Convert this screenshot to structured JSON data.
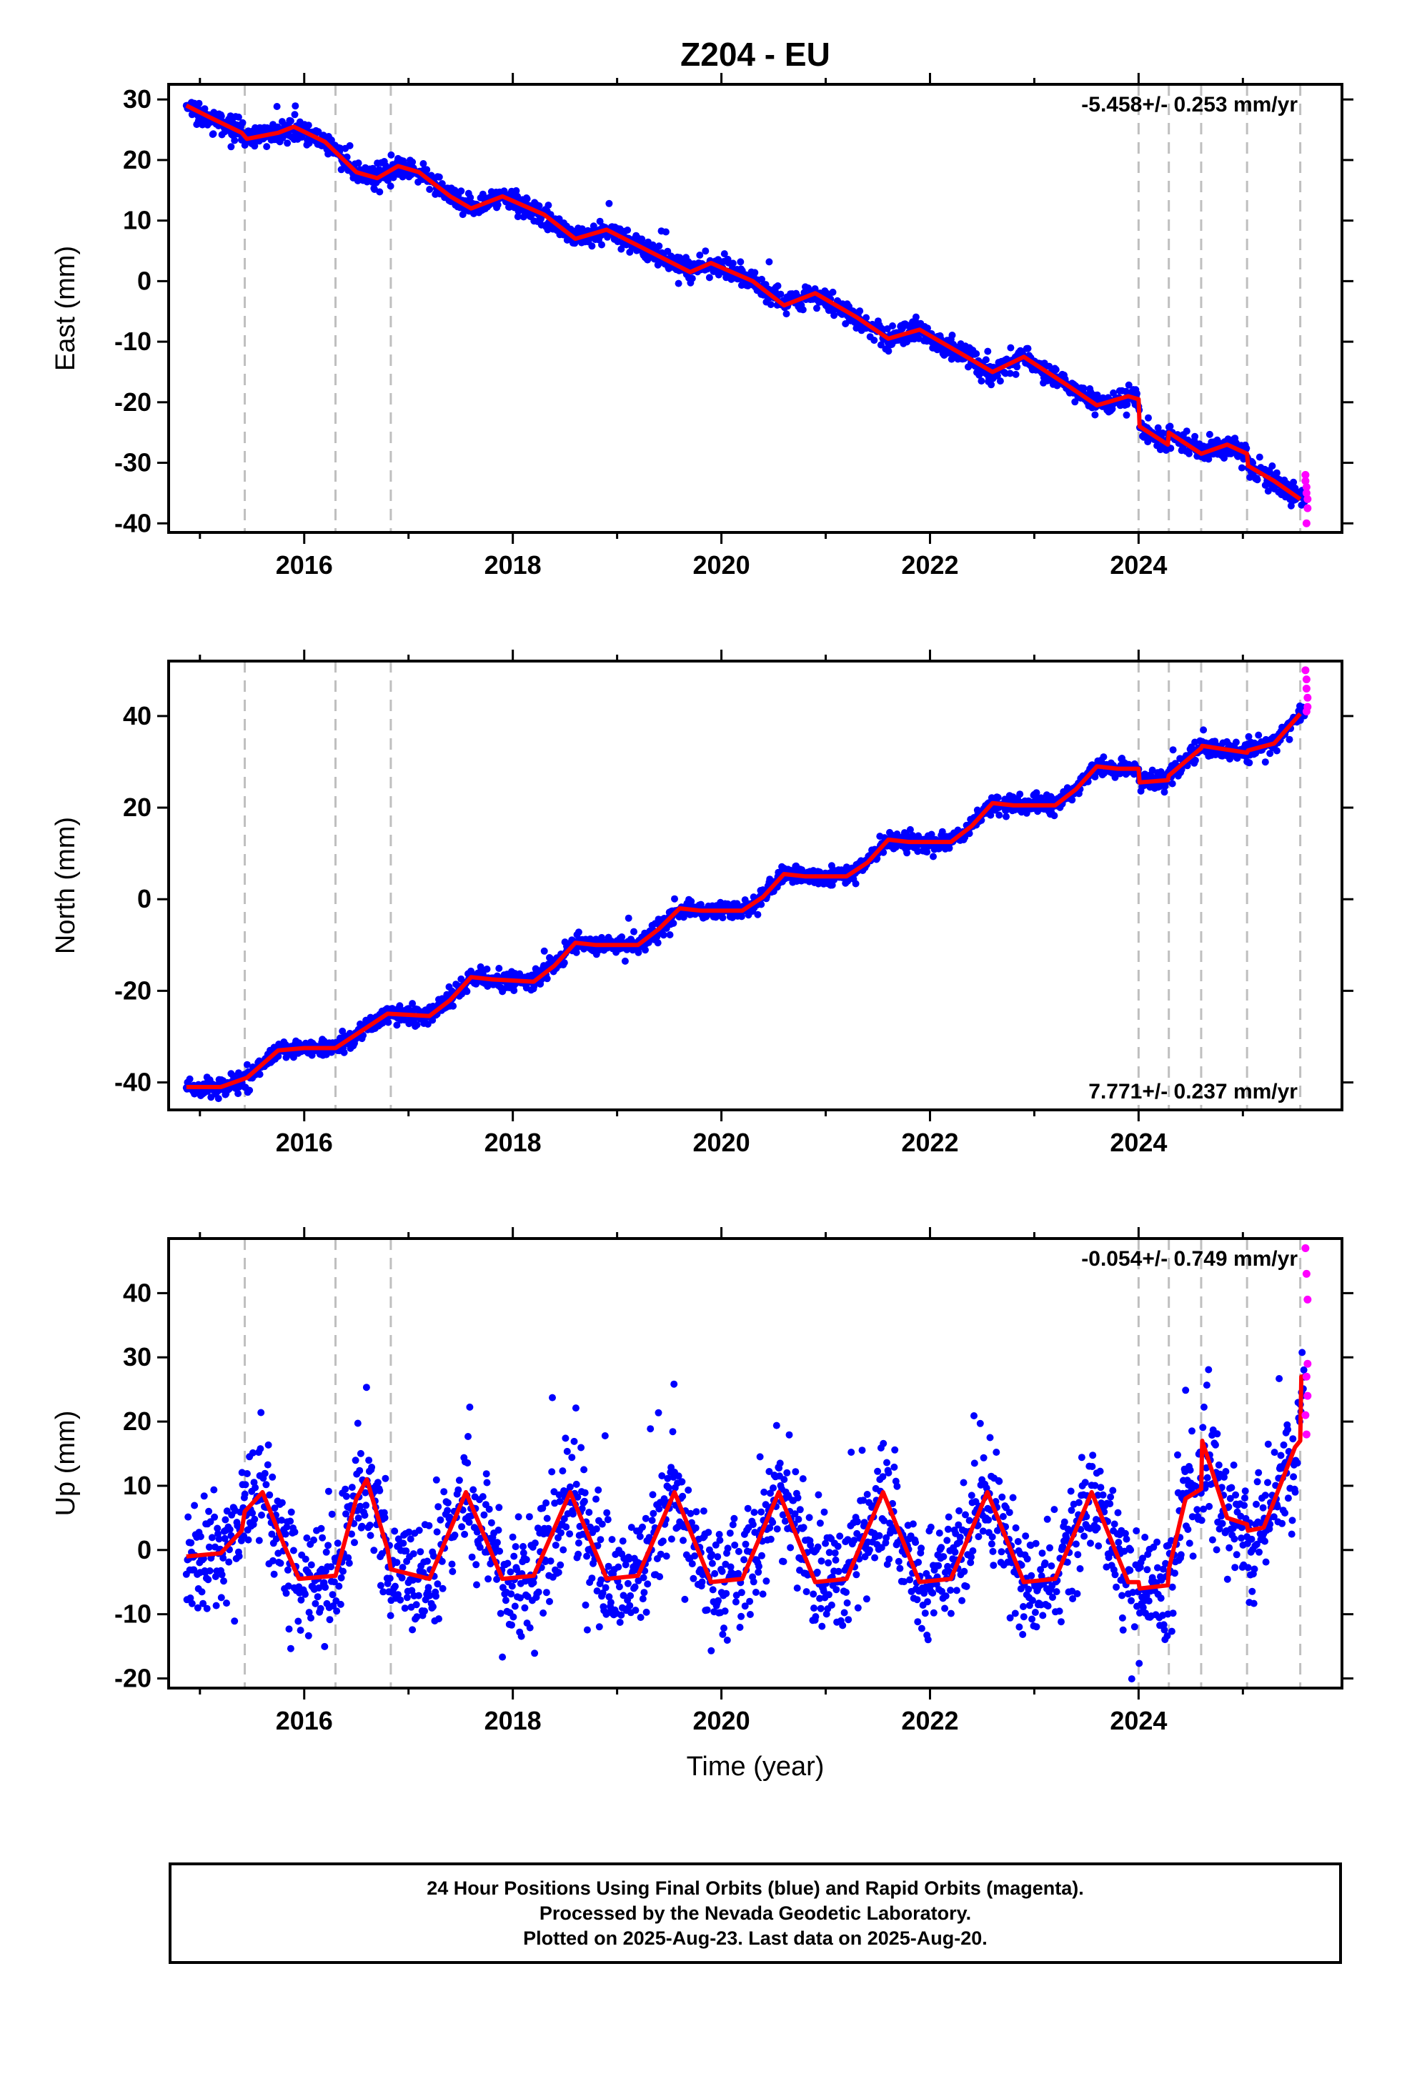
{
  "title": "Z204 - EU",
  "xlabel": "Time (year)",
  "caption": {
    "line1": "24 Hour Positions Using Final Orbits (blue) and Rapid Orbits (magenta).",
    "line2": "Processed by the Nevada Geodetic Laboratory.",
    "line3": "Plotted on 2025-Aug-23. Last data on 2025-Aug-20."
  },
  "colors": {
    "final": "#0000ff",
    "rapid": "#ff00ff",
    "model": "#ff0000",
    "events": "#bfbfbf"
  },
  "chart_data": [
    {
      "type": "scatter",
      "panel": "east",
      "ylabel": "East (mm)",
      "rate_text": "-5.458+/- 0.253 mm/yr",
      "rate_position": "top-right",
      "xlim": [
        2014.7,
        2025.95
      ],
      "ylim": [
        -41.5,
        32.5
      ],
      "xticks": [
        2016,
        2018,
        2020,
        2022,
        2024
      ],
      "xtick_labels": [
        "2016",
        "2018",
        "2020",
        "2022",
        "2024"
      ],
      "yticks": [
        30,
        20,
        10,
        0,
        -10,
        -20,
        -30,
        -40
      ],
      "ytick_labels": [
        "30",
        "20",
        "10",
        "0",
        "-10",
        "-20",
        "-30",
        "-40"
      ],
      "event_lines": [
        2015.43,
        2016.3,
        2016.83,
        2024.0,
        2024.29,
        2024.6,
        2025.04,
        2025.55
      ],
      "model": {
        "x": [
          2014.87,
          2015.1,
          2015.4,
          2015.45,
          2015.75,
          2015.9,
          2016.2,
          2016.5,
          2016.7,
          2016.9,
          2017.1,
          2017.4,
          2017.6,
          2017.9,
          2018.3,
          2018.6,
          2018.9,
          2019.3,
          2019.7,
          2019.9,
          2020.3,
          2020.6,
          2020.9,
          2021.3,
          2021.6,
          2021.9,
          2022.3,
          2022.6,
          2022.9,
          2023.3,
          2023.6,
          2023.9,
          2024.0,
          2024.01,
          2024.28,
          2024.29,
          2024.6,
          2024.85,
          2025.04,
          2025.05,
          2025.3,
          2025.55
        ],
        "y": [
          29,
          27,
          24.5,
          23.5,
          24.5,
          25.5,
          23,
          18,
          17,
          19,
          18,
          14,
          12,
          14,
          11,
          7,
          8.5,
          5,
          1.5,
          3,
          0,
          -4,
          -2,
          -6,
          -9.5,
          -8,
          -12,
          -15,
          -12.5,
          -17,
          -20.5,
          -19,
          -19.5,
          -24,
          -27,
          -25,
          -28.5,
          -27,
          -28.5,
          -30.5,
          -33,
          -36
        ]
      },
      "final_points": {
        "x_start": 2014.87,
        "x_end": 2025.6,
        "step": 0.0055,
        "scatter_mm": 0.9,
        "outlier_mm": 3.5
      },
      "rapid_points": {
        "x": [
          2025.6,
          2025.6,
          2025.61,
          2025.61,
          2025.62,
          2025.62,
          2025.61
        ],
        "y": [
          -32,
          -33,
          -34,
          -35,
          -36,
          -37.5,
          -40
        ]
      }
    },
    {
      "type": "scatter",
      "panel": "north",
      "ylabel": "North (mm)",
      "rate_text": "7.771+/- 0.237 mm/yr",
      "rate_position": "bottom-right",
      "xlim": [
        2014.7,
        2025.95
      ],
      "ylim": [
        -46,
        52
      ],
      "xticks": [
        2016,
        2018,
        2020,
        2022,
        2024
      ],
      "xtick_labels": [
        "2016",
        "2018",
        "2020",
        "2022",
        "2024"
      ],
      "yticks": [
        40,
        20,
        0,
        -20,
        -40
      ],
      "ytick_labels": [
        "40",
        "20",
        "0",
        "-20",
        "-40"
      ],
      "event_lines": [
        2015.43,
        2016.3,
        2016.83,
        2024.0,
        2024.29,
        2024.6,
        2025.04,
        2025.55
      ],
      "model": {
        "x": [
          2014.87,
          2015.2,
          2015.45,
          2015.75,
          2016.0,
          2016.3,
          2016.6,
          2016.8,
          2017.2,
          2017.4,
          2017.6,
          2017.8,
          2018.2,
          2018.4,
          2018.6,
          2018.8,
          2019.2,
          2019.4,
          2019.6,
          2019.8,
          2020.2,
          2020.4,
          2020.6,
          2020.8,
          2021.2,
          2021.4,
          2021.6,
          2021.8,
          2022.2,
          2022.4,
          2022.6,
          2022.8,
          2023.2,
          2023.4,
          2023.6,
          2023.8,
          2024.0,
          2024.01,
          2024.28,
          2024.29,
          2024.6,
          2024.61,
          2025.04,
          2025.05,
          2025.3,
          2025.55
        ],
        "y": [
          -41,
          -41,
          -39,
          -33,
          -32.5,
          -32.5,
          -28,
          -25,
          -25.5,
          -22,
          -17,
          -17.5,
          -18,
          -14.5,
          -9.5,
          -10,
          -10,
          -6.5,
          -2,
          -2.5,
          -2.5,
          0.5,
          5.5,
          5,
          5,
          8,
          13,
          12.5,
          12.5,
          16,
          21,
          20.5,
          20.5,
          24,
          29,
          28.5,
          28.5,
          25.5,
          26,
          27,
          33,
          33.5,
          32,
          32.5,
          34,
          40.5
        ]
      },
      "final_points": {
        "x_start": 2014.87,
        "x_end": 2025.6,
        "step": 0.0055,
        "scatter_mm": 1.0,
        "outlier_mm": 3.5
      },
      "rapid_points": {
        "x": [
          2025.6,
          2025.61,
          2025.61,
          2025.62,
          2025.62,
          2025.61
        ],
        "y": [
          50,
          48,
          46,
          44,
          42,
          41
        ]
      }
    },
    {
      "type": "scatter",
      "panel": "up",
      "ylabel": "Up (mm)",
      "rate_text": "-0.054+/- 0.749 mm/yr",
      "rate_position": "top-right",
      "xlim": [
        2014.7,
        2025.95
      ],
      "ylim": [
        -21.5,
        48.5
      ],
      "xticks": [
        2016,
        2018,
        2020,
        2022,
        2024
      ],
      "xtick_labels": [
        "2016",
        "2018",
        "2020",
        "2022",
        "2024"
      ],
      "yticks": [
        40,
        30,
        20,
        10,
        0,
        -10,
        -20
      ],
      "ytick_labels": [
        "40",
        "30",
        "20",
        "10",
        "0",
        "-10",
        "-20"
      ],
      "event_lines": [
        2015.43,
        2016.3,
        2016.83,
        2024.0,
        2024.29,
        2024.6,
        2025.04,
        2025.55
      ],
      "model": {
        "x": [
          2014.87,
          2015.2,
          2015.4,
          2015.43,
          2015.6,
          2015.8,
          2015.95,
          2016.3,
          2016.5,
          2016.6,
          2016.8,
          2016.83,
          2017.2,
          2017.55,
          2017.9,
          2018.2,
          2018.55,
          2018.9,
          2019.2,
          2019.55,
          2019.9,
          2020.2,
          2020.55,
          2020.9,
          2021.2,
          2021.55,
          2021.9,
          2022.2,
          2022.55,
          2022.9,
          2023.2,
          2023.55,
          2023.9,
          2024.0,
          2024.01,
          2024.28,
          2024.29,
          2024.45,
          2024.6,
          2024.61,
          2024.85,
          2025.04,
          2025.05,
          2025.2,
          2025.5,
          2025.55,
          2025.56,
          2025.62
        ],
        "y": [
          -1,
          -0.5,
          3,
          6,
          9,
          1,
          -4.5,
          -4,
          8,
          11,
          0,
          -3,
          -4.5,
          9,
          -4.5,
          -4,
          9,
          -4.5,
          -4,
          9,
          -5,
          -4.5,
          9,
          -5,
          -4.5,
          9,
          -5,
          -4.5,
          9,
          -5,
          -4.5,
          9,
          -5,
          -5,
          -6,
          -5.5,
          -3,
          8,
          9.5,
          17,
          5,
          4,
          3,
          3.5,
          16,
          17,
          27,
          27
        ]
      },
      "final_points": {
        "x_start": 2014.87,
        "x_end": 2025.6,
        "step": 0.0055,
        "scatter_mm": 4.5,
        "outlier_mm": 14
      },
      "rapid_points": {
        "x": [
          2025.6,
          2025.61,
          2025.62,
          2025.62,
          2025.61,
          2025.62,
          2025.6,
          2025.61
        ],
        "y": [
          47,
          43,
          39,
          29,
          27,
          24,
          21,
          18
        ]
      }
    }
  ]
}
